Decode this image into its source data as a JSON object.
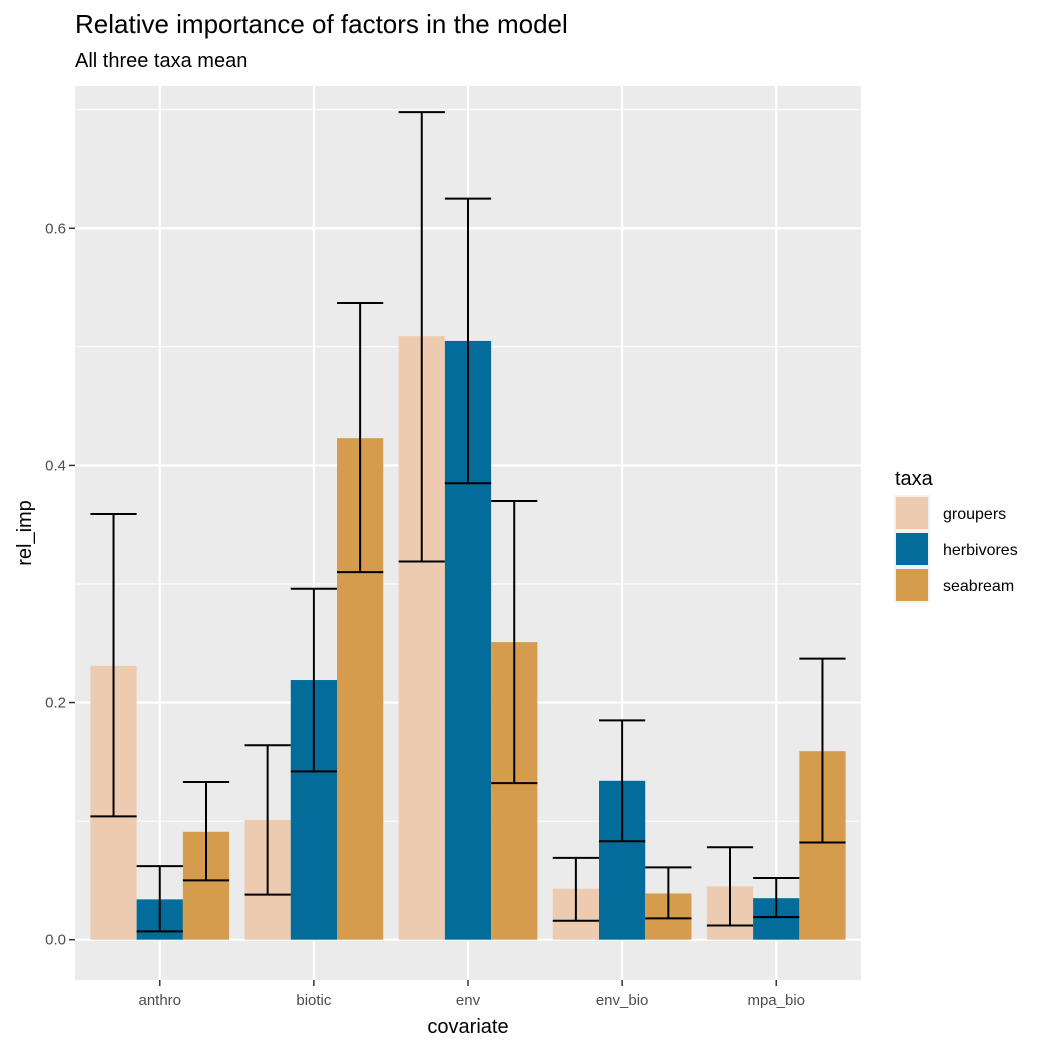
{
  "chart_data": {
    "type": "bar",
    "title": "Relative importance of factors in the model",
    "subtitle": "All three taxa mean",
    "xlabel": "covariate",
    "ylabel": "rel_imp",
    "ylim": [
      -0.034,
      0.72
    ],
    "yticks": [
      0.0,
      0.2,
      0.4,
      0.6
    ],
    "ytick_labels": [
      "0.0",
      "0.2",
      "0.4",
      "0.6"
    ],
    "categories": [
      "anthro",
      "biotic",
      "env",
      "env_bio",
      "mpa_bio"
    ],
    "legend": {
      "title": "taxa",
      "position": "right"
    },
    "grid": true,
    "series": [
      {
        "name": "groupers",
        "color": "#EDCBB0",
        "values": [
          0.231,
          0.101,
          0.509,
          0.043,
          0.045
        ],
        "lower": [
          0.104,
          0.038,
          0.319,
          0.016,
          0.012
        ],
        "upper": [
          0.359,
          0.164,
          0.698,
          0.069,
          0.078
        ]
      },
      {
        "name": "herbivores",
        "color": "#046C9A",
        "values": [
          0.034,
          0.219,
          0.505,
          0.134,
          0.035
        ],
        "lower": [
          0.007,
          0.142,
          0.385,
          0.083,
          0.019
        ],
        "upper": [
          0.062,
          0.296,
          0.625,
          0.185,
          0.052
        ]
      },
      {
        "name": "seabream",
        "color": "#D69C4E",
        "values": [
          0.091,
          0.423,
          0.251,
          0.039,
          0.159
        ],
        "lower": [
          0.05,
          0.31,
          0.132,
          0.018,
          0.082
        ],
        "upper": [
          0.133,
          0.537,
          0.37,
          0.061,
          0.237
        ]
      }
    ]
  }
}
